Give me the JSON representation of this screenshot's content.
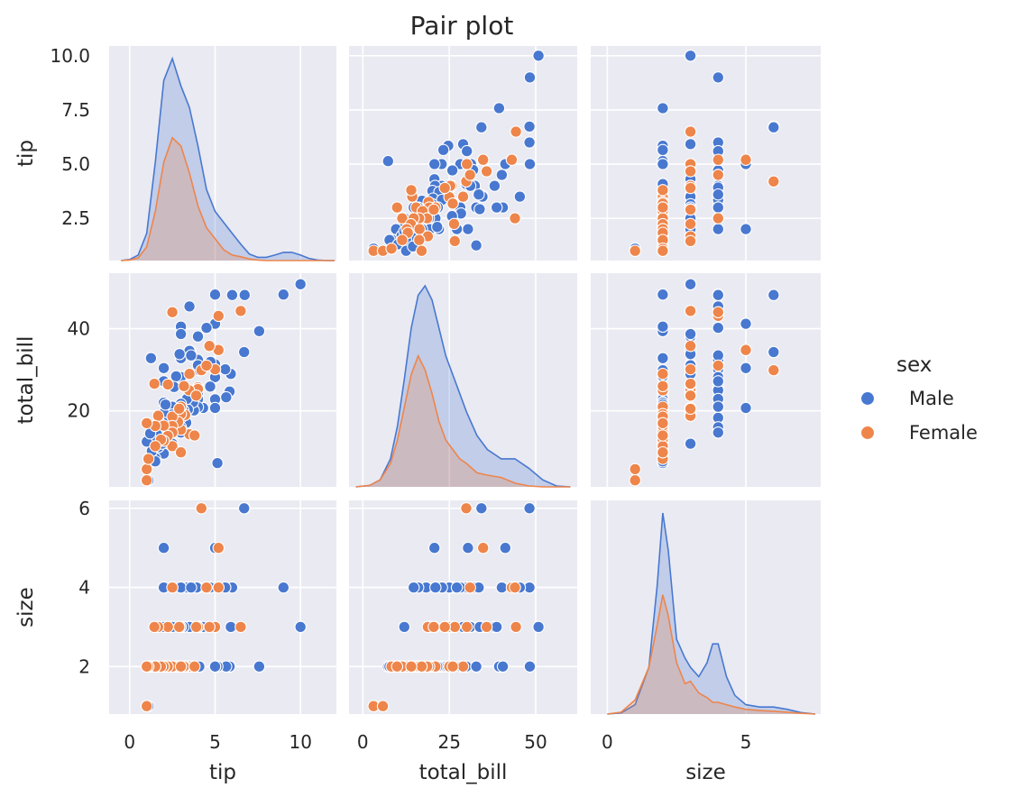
{
  "chart_data": {
    "type": "scatter",
    "title": "Pair plot",
    "variables": [
      "tip",
      "total_bill",
      "size"
    ],
    "hue": {
      "name": "sex",
      "levels": [
        "Male",
        "Female"
      ],
      "colors": {
        "Male": "#4878d0",
        "Female": "#ee854a"
      }
    },
    "axes": {
      "tip": {
        "range": [
          -1.2,
          12.1
        ],
        "ticks": [
          0,
          5,
          10
        ],
        "tick_labels": [
          "0",
          "5",
          "10"
        ]
      },
      "total_bill": {
        "range": [
          -4,
          62
        ],
        "ticks": [
          0,
          25,
          50
        ],
        "tick_labels": [
          "0",
          "25",
          "50"
        ]
      },
      "size": {
        "range": [
          -0.6,
          7.7
        ],
        "ticks": [
          0,
          5
        ],
        "tick_labels": [
          "0",
          "5"
        ]
      }
    },
    "row_ranges": {
      "tip": {
        "range": [
          0.55,
          10.45
        ],
        "ticks": [
          2.5,
          5.0,
          7.5,
          10.0
        ],
        "tick_labels": [
          "2.5",
          "5.0",
          "7.5",
          "10.0"
        ]
      },
      "total_bill": {
        "range": [
          1.5,
          53.5
        ],
        "ticks": [
          20,
          40
        ],
        "tick_labels": [
          "20",
          "40"
        ]
      },
      "size": {
        "range": [
          0.8,
          6.2
        ],
        "ticks": [
          2,
          4,
          6
        ],
        "tick_labels": [
          "2",
          "4",
          "6"
        ]
      }
    },
    "points": {
      "Male": [
        [
          10.0,
          50.8,
          3
        ],
        [
          9.0,
          48.3,
          4
        ],
        [
          7.58,
          39.4,
          2
        ],
        [
          6.73,
          48.2,
          6
        ],
        [
          6.7,
          34.3,
          6
        ],
        [
          6.0,
          48.2,
          4
        ],
        [
          5.92,
          29.0,
          3
        ],
        [
          5.85,
          24.7,
          2
        ],
        [
          5.65,
          23.3,
          2
        ],
        [
          5.6,
          30.1,
          4
        ],
        [
          5.14,
          7.3,
          2
        ],
        [
          5.0,
          48.3,
          2
        ],
        [
          5.0,
          41.2,
          5
        ],
        [
          5.0,
          31.3,
          3
        ],
        [
          5.0,
          28.2,
          2
        ],
        [
          5.0,
          22.8,
          2
        ],
        [
          5.0,
          20.7,
          5
        ],
        [
          4.73,
          31.9,
          4
        ],
        [
          4.71,
          25.9,
          4
        ],
        [
          4.5,
          40.2,
          4
        ],
        [
          4.3,
          20.7,
          3
        ],
        [
          4.08,
          29.9,
          2
        ],
        [
          4.0,
          38.1,
          3
        ],
        [
          4.0,
          32.4,
          4
        ],
        [
          4.0,
          31.1,
          3
        ],
        [
          4.0,
          24.5,
          3
        ],
        [
          4.0,
          22.8,
          4
        ],
        [
          4.0,
          20.9,
          4
        ],
        [
          3.92,
          25.2,
          4
        ],
        [
          3.76,
          20.1,
          2
        ],
        [
          3.71,
          22.1,
          2
        ],
        [
          3.55,
          34.6,
          3
        ],
        [
          3.5,
          45.4,
          4
        ],
        [
          3.5,
          34.6,
          3
        ],
        [
          3.48,
          25.0,
          4
        ],
        [
          3.41,
          20.3,
          2
        ],
        [
          3.35,
          22.9,
          4
        ],
        [
          3.31,
          17.1,
          2
        ],
        [
          3.15,
          20.1,
          3
        ],
        [
          3.0,
          40.5,
          2
        ],
        [
          3.0,
          38.7,
          3
        ],
        [
          3.0,
          32.8,
          2
        ],
        [
          3.0,
          28.2,
          4
        ],
        [
          3.0,
          21.7,
          2
        ],
        [
          3.0,
          20.3,
          2
        ],
        [
          3.0,
          18.3,
          4
        ],
        [
          3.0,
          16.0,
          4
        ],
        [
          3.0,
          14.7,
          4
        ],
        [
          2.92,
          33.8,
          3
        ],
        [
          2.72,
          28.4,
          2
        ],
        [
          2.6,
          25.8,
          2
        ],
        [
          2.5,
          21.0,
          4
        ],
        [
          2.5,
          19.1,
          3
        ],
        [
          2.5,
          18.3,
          2
        ],
        [
          2.5,
          15.0,
          2
        ],
        [
          2.5,
          12.0,
          3
        ],
        [
          2.31,
          16.3,
          2
        ],
        [
          2.2,
          11.6,
          2
        ],
        [
          2.0,
          30.4,
          5
        ],
        [
          2.0,
          27.2,
          4
        ],
        [
          2.0,
          22.0,
          2
        ],
        [
          2.0,
          19.4,
          3
        ],
        [
          2.0,
          17.1,
          2
        ],
        [
          2.0,
          15.4,
          2
        ],
        [
          2.0,
          13.2,
          2
        ],
        [
          2.0,
          11.0,
          2
        ],
        [
          2.0,
          9.6,
          2
        ],
        [
          1.8,
          16.0,
          2
        ],
        [
          1.71,
          17.4,
          2
        ],
        [
          1.6,
          14.3,
          2
        ],
        [
          1.5,
          8.5,
          2
        ],
        [
          1.5,
          7.7,
          2
        ],
        [
          1.5,
          12.5,
          2
        ],
        [
          1.3,
          10.2,
          2
        ],
        [
          1.25,
          32.8,
          2
        ],
        [
          1.0,
          12.5,
          2
        ],
        [
          1.7,
          11.2,
          2
        ],
        [
          1.2,
          14.5,
          2
        ],
        [
          3.6,
          33.5,
          4
        ],
        [
          1.9,
          12.0,
          2
        ],
        [
          2.1,
          21.5,
          2
        ],
        [
          3.2,
          26.0,
          2
        ],
        [
          1.1,
          3.1,
          1
        ]
      ],
      "Female": [
        [
          6.5,
          44.3,
          3
        ],
        [
          5.2,
          43.1,
          4
        ],
        [
          5.2,
          34.8,
          5
        ],
        [
          5.0,
          30.1,
          3
        ],
        [
          4.67,
          35.8,
          3
        ],
        [
          4.2,
          29.9,
          6
        ],
        [
          4.0,
          25.7,
          3
        ],
        [
          4.0,
          25.3,
          3
        ],
        [
          3.5,
          29.0,
          2
        ],
        [
          3.5,
          14.3,
          2
        ],
        [
          3.48,
          25.0,
          2
        ],
        [
          3.25,
          19.0,
          2
        ],
        [
          3.18,
          26.0,
          2
        ],
        [
          3.0,
          21.0,
          2
        ],
        [
          3.0,
          19.2,
          2
        ],
        [
          3.0,
          15.4,
          2
        ],
        [
          2.83,
          17.3,
          2
        ],
        [
          2.5,
          18.6,
          2
        ],
        [
          2.5,
          16.3,
          2
        ],
        [
          2.5,
          14.7,
          2
        ],
        [
          2.5,
          11.4,
          2
        ],
        [
          2.24,
          26.4,
          3
        ],
        [
          2.23,
          13.9,
          2
        ],
        [
          2.0,
          16.4,
          2
        ],
        [
          2.0,
          12.7,
          2
        ],
        [
          1.83,
          13.0,
          2
        ],
        [
          1.67,
          18.8,
          3
        ],
        [
          1.5,
          16.3,
          2
        ],
        [
          1.5,
          11.4,
          2
        ],
        [
          1.0,
          3.1,
          1
        ],
        [
          1.0,
          5.8,
          1
        ],
        [
          1.1,
          8.3,
          2
        ],
        [
          2.5,
          44.0,
          4
        ],
        [
          3.0,
          9.9,
          2
        ],
        [
          1.45,
          26.6,
          3
        ],
        [
          3.9,
          23.7,
          3
        ],
        [
          2.9,
          20.5,
          3
        ],
        [
          1.0,
          17.0,
          2
        ],
        [
          4.5,
          31.0,
          4
        ],
        [
          3.8,
          14.0,
          2
        ]
      ]
    },
    "kde": {
      "tip": {
        "x": [
          -0.5,
          0.0,
          0.5,
          1.0,
          1.5,
          2.0,
          2.5,
          3.0,
          3.5,
          4.0,
          4.5,
          5.0,
          5.5,
          6.0,
          6.5,
          7.0,
          7.5,
          8.0,
          8.5,
          9.0,
          9.5,
          10.0,
          10.5,
          11.0,
          11.5,
          12.0
        ],
        "Male": [
          0,
          0.002,
          0.01,
          0.05,
          0.18,
          0.33,
          0.37,
          0.32,
          0.28,
          0.21,
          0.13,
          0.09,
          0.07,
          0.05,
          0.03,
          0.012,
          0.006,
          0.006,
          0.01,
          0.015,
          0.015,
          0.01,
          0.004,
          0.001,
          0,
          0
        ],
        "Female": [
          0,
          0.001,
          0.005,
          0.025,
          0.09,
          0.18,
          0.225,
          0.21,
          0.16,
          0.1,
          0.06,
          0.04,
          0.02,
          0.01,
          0.007,
          0.003,
          0.001,
          0,
          0,
          0,
          0,
          0,
          0,
          0,
          0,
          0
        ]
      },
      "total_bill": {
        "x": [
          -2,
          2,
          5,
          8,
          10,
          12,
          14,
          16,
          18,
          20,
          22,
          24,
          26,
          28,
          30,
          33,
          36,
          40,
          44,
          48,
          52,
          56,
          60
        ],
        "Male": [
          0,
          0.0003,
          0.0015,
          0.006,
          0.013,
          0.023,
          0.034,
          0.041,
          0.043,
          0.04,
          0.034,
          0.028,
          0.024,
          0.02,
          0.016,
          0.011,
          0.008,
          0.006,
          0.006,
          0.004,
          0.0015,
          0.0002,
          0
        ],
        "Female": [
          0,
          0.0003,
          0.0015,
          0.005,
          0.01,
          0.017,
          0.024,
          0.028,
          0.025,
          0.02,
          0.014,
          0.01,
          0.008,
          0.006,
          0.005,
          0.003,
          0.0025,
          0.002,
          0.0008,
          0.0002,
          0,
          0,
          0
        ]
      },
      "size": {
        "x": [
          0,
          0.5,
          1.0,
          1.5,
          1.8,
          2.0,
          2.2,
          2.5,
          2.8,
          3.0,
          3.3,
          3.6,
          3.8,
          4.0,
          4.3,
          4.6,
          5.0,
          5.5,
          6.0,
          6.5,
          7.0,
          7.5
        ],
        "Male": [
          0,
          0.005,
          0.04,
          0.2,
          0.55,
          0.86,
          0.7,
          0.32,
          0.24,
          0.2,
          0.16,
          0.22,
          0.3,
          0.3,
          0.16,
          0.08,
          0.04,
          0.03,
          0.03,
          0.02,
          0.006,
          0
        ],
        "Female": [
          0,
          0.008,
          0.06,
          0.2,
          0.38,
          0.51,
          0.42,
          0.22,
          0.13,
          0.14,
          0.09,
          0.07,
          0.05,
          0.05,
          0.04,
          0.03,
          0.02,
          0.015,
          0.012,
          0.008,
          0.003,
          0
        ]
      }
    },
    "legend": {
      "title": "sex",
      "entries": [
        "Male",
        "Female"
      ],
      "placement": "right"
    },
    "grid": true
  }
}
